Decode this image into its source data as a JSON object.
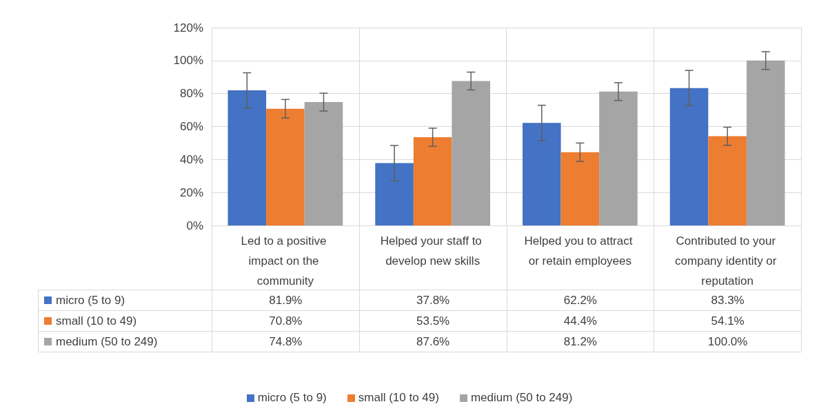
{
  "chart_data": {
    "type": "bar",
    "categories": [
      "Led to a positive impact on the community",
      "Helped your staff to develop new skills",
      "Helped you to attract or retain employees",
      "Contributed to your company identity or reputation"
    ],
    "series": [
      {
        "name": "micro (5 to 9)",
        "color": "#4472c4",
        "values": [
          81.9,
          37.8,
          62.2,
          83.3
        ],
        "errors": [
          10.7,
          10.7,
          10.7,
          10.7
        ],
        "value_labels": [
          "81.9%",
          "37.8%",
          "62.2%",
          "83.3%"
        ]
      },
      {
        "name": "small (10 to 49)",
        "color": "#ed7d31",
        "values": [
          70.8,
          53.5,
          44.4,
          54.1
        ],
        "errors": [
          5.6,
          5.5,
          5.6,
          5.5
        ],
        "value_labels": [
          "70.8%",
          "53.5%",
          "44.4%",
          "54.1%"
        ]
      },
      {
        "name": "medium (50 to 249)",
        "color": "#a5a5a5",
        "values": [
          74.8,
          87.6,
          81.2,
          100.0
        ],
        "errors": [
          5.4,
          5.4,
          5.4,
          5.4
        ],
        "value_labels": [
          "74.8%",
          "87.6%",
          "81.2%",
          "100.0%"
        ]
      }
    ],
    "ylim": [
      0,
      120
    ],
    "yticks": [
      {
        "value": 0,
        "label": "0%"
      },
      {
        "value": 20,
        "label": "20%"
      },
      {
        "value": 40,
        "label": "40%"
      },
      {
        "value": 60,
        "label": "60%"
      },
      {
        "value": 80,
        "label": "80%"
      },
      {
        "value": 100,
        "label": "100%"
      },
      {
        "value": 120,
        "label": "120%"
      }
    ],
    "grid": true,
    "legend": "bottom"
  }
}
